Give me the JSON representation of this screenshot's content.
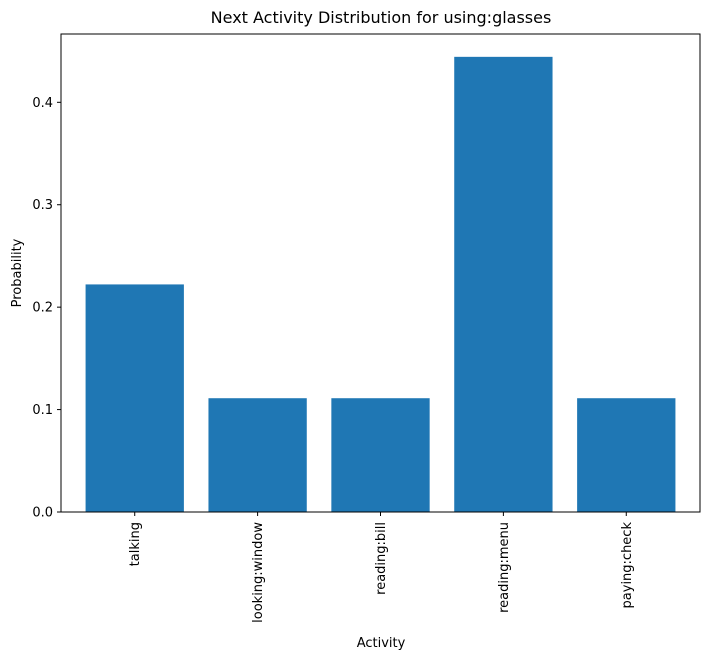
{
  "chart_data": {
    "type": "bar",
    "title": "Next Activity Distribution for using:glasses",
    "xlabel": "Activity",
    "ylabel": "Probability",
    "categories": [
      "talking",
      "looking:window",
      "reading:bill",
      "reading:menu",
      "paying:check"
    ],
    "values": [
      0.2222,
      0.1111,
      0.1111,
      0.4444,
      0.1111
    ],
    "ylim": [
      0,
      0.4667
    ],
    "yticks": [
      0.0,
      0.1,
      0.2,
      0.3,
      0.4
    ],
    "ytick_labels": [
      "0.0",
      "0.1",
      "0.2",
      "0.3",
      "0.4"
    ],
    "bar_color": "#1f77b4",
    "grid": false
  }
}
